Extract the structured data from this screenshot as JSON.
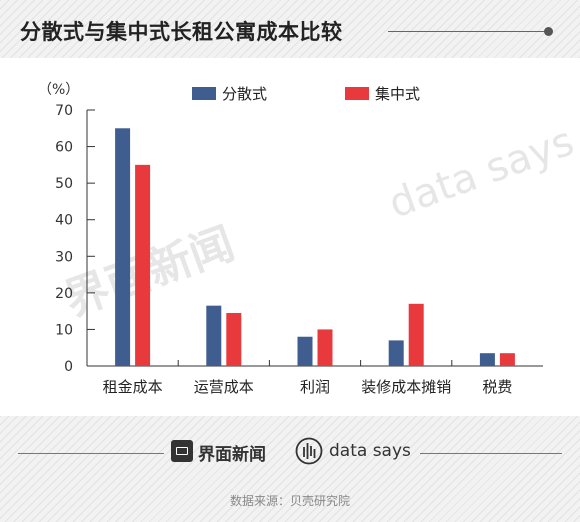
{
  "title": "分散式与集中式长租公寓成本比较",
  "watermarks": {
    "jiemian": "界面新闻",
    "datasays": "data says"
  },
  "brand": {
    "jiemian": "界面新闻",
    "datasays": "data says"
  },
  "source": "数据来源：贝壳研究院",
  "colors": {
    "dispersed": "#3f5d8e",
    "centralized": "#e8393c"
  },
  "chart_data": {
    "type": "bar",
    "unit_label": "（%）",
    "categories": [
      "租金成本",
      "运营成本",
      "利润",
      "装修成本摊销",
      "税费"
    ],
    "series": [
      {
        "name": "分散式",
        "values": [
          65,
          16.5,
          8,
          7,
          3.5
        ]
      },
      {
        "name": "集中式",
        "values": [
          55,
          14.5,
          10,
          17,
          3.5
        ]
      }
    ],
    "ylim": [
      0,
      70
    ],
    "yticks": [
      0,
      10,
      20,
      30,
      40,
      50,
      60,
      70
    ],
    "legend": "top-center",
    "grid": false
  }
}
